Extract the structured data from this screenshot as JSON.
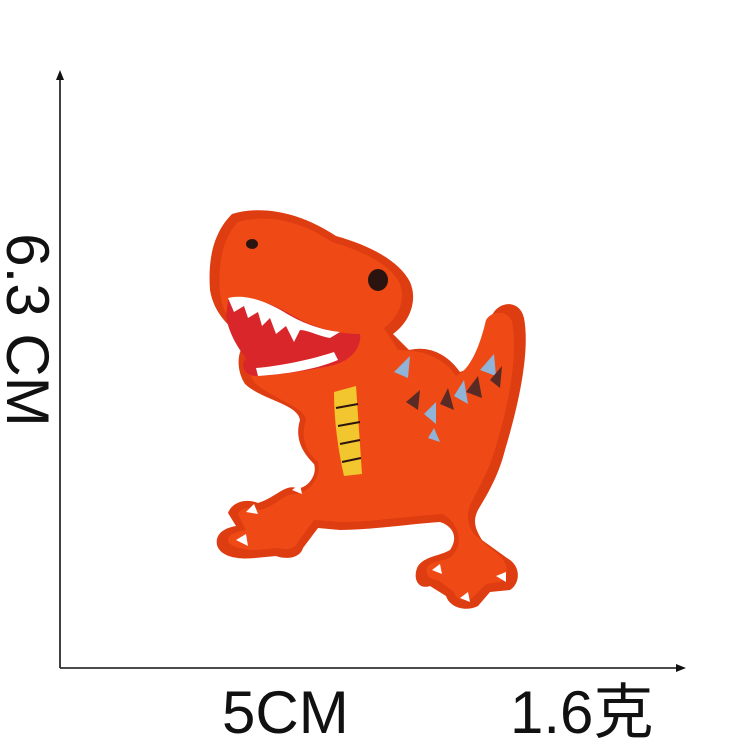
{
  "dimensions": {
    "height_label": "6.3 CM",
    "width_label": "5CM",
    "weight_label": "1.6克"
  },
  "product": {
    "image": "orange-dinosaur-embroidered-patch",
    "colors": {
      "body": "#ef4a15",
      "border": "#de3d12",
      "belly": "#f2c62e",
      "mouth": "#d9262a",
      "teeth": "#ffffff",
      "eye": "#2b1410",
      "spikes_dark": "#5a2a24",
      "spikes_light": "#8fb4d8"
    }
  },
  "axes": {
    "color": "#111111"
  }
}
